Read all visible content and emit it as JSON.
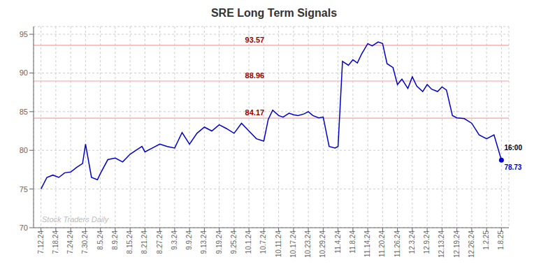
{
  "chart_data": {
    "type": "line",
    "title": "SRE Long Term Signals",
    "color": "#0000CC",
    "grid": true,
    "xlim": [
      -0.5,
      31.5
    ],
    "ylim": [
      70,
      96
    ],
    "yticks": [
      70,
      75,
      80,
      85,
      90,
      95
    ],
    "xticks": [
      {
        "value": 0,
        "label": "7.12.24"
      },
      {
        "value": 1,
        "label": "7.18.24"
      },
      {
        "value": 2,
        "label": "7.24.24"
      },
      {
        "value": 3,
        "label": "7.30.24"
      },
      {
        "value": 4,
        "label": "8.5.24"
      },
      {
        "value": 5,
        "label": "8.9.24"
      },
      {
        "value": 6,
        "label": "8.15.24"
      },
      {
        "value": 7,
        "label": "8.21.24"
      },
      {
        "value": 8,
        "label": "8.27.24"
      },
      {
        "value": 9,
        "label": "9.3.24"
      },
      {
        "value": 10,
        "label": "9.9.24"
      },
      {
        "value": 11,
        "label": "9.13.24"
      },
      {
        "value": 12,
        "label": "9.19.24"
      },
      {
        "value": 13,
        "label": "9.25.24"
      },
      {
        "value": 14,
        "label": "10.1.24"
      },
      {
        "value": 15,
        "label": "10.7.24"
      },
      {
        "value": 16,
        "label": "10.11.24"
      },
      {
        "value": 17,
        "label": "10.17.24"
      },
      {
        "value": 18,
        "label": "10.23.24"
      },
      {
        "value": 19,
        "label": "10.29.24"
      },
      {
        "value": 20,
        "label": "11.4.24"
      },
      {
        "value": 21,
        "label": "11.8.24"
      },
      {
        "value": 22,
        "label": "11.14.24"
      },
      {
        "value": 23,
        "label": "11.20.24"
      },
      {
        "value": 24,
        "label": "11.26.24"
      },
      {
        "value": 25,
        "label": "12.3.24"
      },
      {
        "value": 26,
        "label": "12.9.24"
      },
      {
        "value": 27,
        "label": "12.13.24"
      },
      {
        "value": 28,
        "label": "12.19.24"
      },
      {
        "value": 29,
        "label": "12.26.24"
      },
      {
        "value": 30,
        "label": "1.2.25"
      },
      {
        "value": 31,
        "label": "1.8.25"
      }
    ],
    "x": [
      0,
      0.4,
      0.8,
      1.2,
      1.6,
      2.0,
      2.4,
      2.8,
      3.0,
      3.4,
      3.8,
      4.0,
      4.5,
      5.0,
      5.5,
      6.0,
      6.4,
      6.8,
      7.0,
      7.5,
      8.0,
      8.5,
      9.0,
      9.5,
      10.0,
      10.5,
      11.0,
      11.5,
      12.0,
      12.5,
      13.0,
      13.5,
      14.0,
      14.5,
      15.0,
      15.3,
      15.6,
      16.0,
      16.3,
      16.7,
      17.0,
      17.3,
      17.7,
      18.0,
      18.3,
      18.7,
      19.0,
      19.4,
      19.8,
      20.0,
      20.3,
      20.7,
      21.0,
      21.3,
      21.6,
      22.0,
      22.3,
      22.7,
      23.0,
      23.3,
      23.7,
      24.0,
      24.3,
      24.7,
      25.0,
      25.3,
      25.7,
      26.0,
      26.3,
      26.7,
      27.0,
      27.3,
      27.7,
      28.0,
      28.5,
      29.0,
      29.5,
      30.0,
      30.5,
      31.0
    ],
    "values": [
      75.0,
      76.5,
      76.8,
      76.5,
      77.1,
      77.2,
      77.8,
      78.3,
      80.8,
      76.5,
      76.2,
      77.0,
      78.8,
      79.0,
      78.5,
      79.5,
      80.0,
      80.5,
      79.8,
      80.3,
      80.8,
      80.5,
      80.3,
      82.3,
      80.8,
      82.2,
      83.0,
      82.5,
      83.3,
      82.8,
      82.2,
      83.5,
      82.5,
      81.5,
      81.2,
      84.0,
      85.2,
      84.5,
      84.3,
      84.8,
      84.6,
      84.5,
      84.7,
      85.0,
      84.5,
      84.2,
      84.3,
      80.5,
      80.3,
      80.5,
      91.5,
      91.0,
      91.7,
      91.3,
      92.5,
      93.8,
      93.5,
      94.0,
      93.8,
      91.2,
      90.7,
      88.5,
      89.2,
      88.0,
      89.5,
      88.3,
      87.6,
      88.5,
      87.9,
      87.6,
      88.2,
      87.8,
      84.5,
      84.2,
      84.1,
      83.5,
      82.0,
      81.5,
      82.0,
      78.73
    ],
    "annotations": [
      {
        "kind": "hline",
        "text": "84.17",
        "y": 84.17,
        "color": "#990000",
        "line_color": "#f4a0a0"
      },
      {
        "kind": "hline",
        "text": "88.96",
        "y": 88.96,
        "color": "#990000",
        "line_color": "#f4a0a0"
      },
      {
        "kind": "hline",
        "text": "93.57",
        "y": 93.57,
        "color": "#990000",
        "line_color": "#f4a0a0"
      },
      {
        "kind": "watermark",
        "text": "Stock Traders Daily",
        "color": "#bbbbbb"
      },
      {
        "kind": "last_time",
        "text": "16:00",
        "color": "#000000"
      },
      {
        "kind": "last_price",
        "text": "78.73",
        "color": "#0000CC"
      }
    ]
  }
}
